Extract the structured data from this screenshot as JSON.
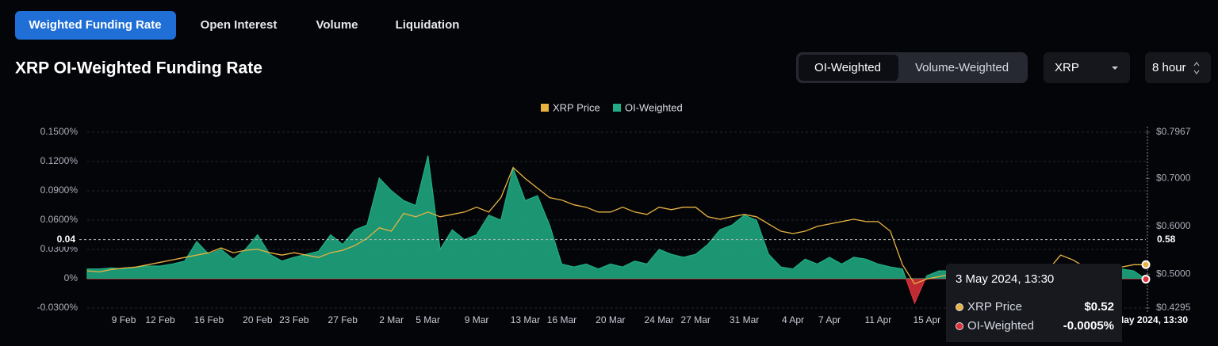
{
  "tabs": [
    "Weighted Funding Rate",
    "Open Interest",
    "Volume",
    "Liquidation"
  ],
  "title": "XRP OI-Weighted Funding Rate",
  "toggle": [
    "OI-Weighted",
    "Volume-Weighted"
  ],
  "selects": [
    "XRP",
    "8 hour"
  ],
  "chart_data": {
    "type": "line",
    "categories": [
      null,
      null,
      null,
      "9 Feb",
      null,
      null,
      "12 Feb",
      null,
      null,
      null,
      "16 Feb",
      null,
      null,
      null,
      "20 Feb",
      null,
      null,
      "23 Feb",
      null,
      null,
      null,
      "27 Feb",
      null,
      null,
      null,
      "2 Mar",
      null,
      null,
      "5 Mar",
      null,
      null,
      null,
      "9 Mar",
      null,
      null,
      null,
      "13 Mar",
      null,
      null,
      "16 Mar",
      null,
      null,
      null,
      "20 Mar",
      null,
      null,
      null,
      "24 Mar",
      null,
      null,
      "27 Mar",
      null,
      null,
      null,
      "31 Mar",
      null,
      null,
      null,
      "4 Apr",
      null,
      null,
      "7 Apr",
      null,
      null,
      null,
      "11 Apr",
      null,
      null,
      null,
      "15 Apr",
      null,
      null,
      null,
      null,
      null,
      null,
      null,
      null,
      null,
      null,
      null,
      null,
      null,
      null,
      null,
      null,
      null,
      null
    ],
    "series": [
      {
        "name": "XRP Price",
        "color": "#e8b341",
        "axis": "y2",
        "values": [
          0.507,
          0.505,
          0.51,
          0.513,
          0.515,
          0.52,
          0.525,
          0.53,
          0.535,
          0.54,
          0.545,
          0.555,
          0.545,
          0.55,
          0.552,
          0.545,
          0.54,
          0.545,
          0.54,
          0.535,
          0.545,
          0.55,
          0.56,
          0.575,
          0.597,
          0.59,
          0.627,
          0.62,
          0.63,
          0.62,
          0.625,
          0.63,
          0.64,
          0.63,
          0.66,
          0.723,
          0.7,
          0.68,
          0.66,
          0.655,
          0.645,
          0.64,
          0.63,
          0.63,
          0.64,
          0.63,
          0.625,
          0.64,
          0.635,
          0.64,
          0.64,
          0.62,
          0.615,
          0.62,
          0.625,
          0.62,
          0.605,
          0.59,
          0.585,
          0.59,
          0.6,
          0.605,
          0.61,
          0.615,
          0.61,
          0.61,
          0.59,
          0.52,
          0.48,
          0.49,
          0.495,
          0.5,
          0.505,
          0.51,
          0.505,
          0.51,
          0.52,
          0.505,
          0.51,
          0.51,
          0.54,
          0.53,
          0.515,
          0.51,
          0.505,
          0.515,
          0.52,
          0.52
        ]
      },
      {
        "name": "OI-Weighted",
        "color": "#1fae85",
        "negative_color": "#e0323c",
        "fill": true,
        "values": [
          0.01,
          0.01,
          0.011,
          0.01,
          0.012,
          0.013,
          0.013,
          0.015,
          0.018,
          0.038,
          0.025,
          0.03,
          0.02,
          0.03,
          0.045,
          0.025,
          0.018,
          0.022,
          0.025,
          0.028,
          0.045,
          0.035,
          0.05,
          0.055,
          0.103,
          0.09,
          0.08,
          0.075,
          0.126,
          0.03,
          0.05,
          0.04,
          0.045,
          0.065,
          0.06,
          0.113,
          0.08,
          0.085,
          0.055,
          0.015,
          0.012,
          0.015,
          0.01,
          0.015,
          0.012,
          0.018,
          0.015,
          0.03,
          0.025,
          0.022,
          0.025,
          0.035,
          0.05,
          0.055,
          0.065,
          0.06,
          0.025,
          0.012,
          0.01,
          0.02,
          0.015,
          0.022,
          0.015,
          0.022,
          0.02,
          0.015,
          0.012,
          0.01,
          -0.025,
          0.003,
          0.008,
          0.008,
          0.01,
          0.009,
          0.008,
          0.007,
          0.008,
          0.006,
          0.005,
          0.006,
          0.007,
          0.005,
          0.006,
          0.005,
          0.004,
          0.01,
          0.008,
          -0.0005
        ]
      }
    ],
    "ylim": [
      -0.03,
      0.15
    ],
    "yticks": [
      {
        "value": 0.15,
        "label": "0.1500%"
      },
      {
        "value": 0.12,
        "label": "0.1200%"
      },
      {
        "value": 0.09,
        "label": "0.0900%"
      },
      {
        "value": 0.06,
        "label": "0.0600%"
      },
      {
        "value": 0.03,
        "label": "0.0300%"
      },
      {
        "value": 0,
        "label": "0%"
      },
      {
        "value": -0.03,
        "label": "-0.0300%"
      }
    ],
    "y2lim": [
      0.4295,
      0.7967
    ],
    "y2ticks": [
      {
        "value": 0.7967,
        "label": "$0.7967"
      },
      {
        "value": 0.7,
        "label": "$0.7000"
      },
      {
        "value": 0.6,
        "label": "$0.6000"
      },
      {
        "value": 0.5,
        "label": "$0.5000"
      },
      {
        "value": 0.4295,
        "label": "$0.4295"
      }
    ],
    "grid": true,
    "crosshair": {
      "y": 0.04,
      "y2": 0.58
    }
  },
  "tooltip": {
    "title": "3 May 2024, 13:30",
    "rows": [
      {
        "name": "XRP Price",
        "value_label": "$0.52"
      },
      {
        "name": "OI-Weighted",
        "value_label": "-0.0005%"
      }
    ]
  }
}
